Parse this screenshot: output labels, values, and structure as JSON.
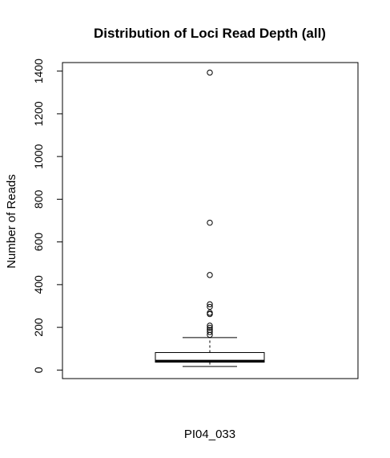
{
  "chart_data": {
    "type": "boxplot",
    "title": "Distribution of Loci Read Depth (all)",
    "xlabel": "PI04_033",
    "ylabel": "Number of Reads",
    "ylim": [
      -40,
      1440
    ],
    "yticks": [
      0,
      200,
      400,
      600,
      800,
      1000,
      1200,
      1400
    ],
    "grid": false,
    "legend": "none",
    "box": {
      "whisker_low": 17,
      "q1": 37,
      "median": 42,
      "q3": 82,
      "whisker_high": 152
    },
    "outliers": [
      1393,
      690,
      445,
      308,
      296,
      268,
      262,
      208,
      198,
      188,
      178,
      165
    ]
  },
  "colors": {
    "stroke": "#000000",
    "background": "#ffffff"
  }
}
